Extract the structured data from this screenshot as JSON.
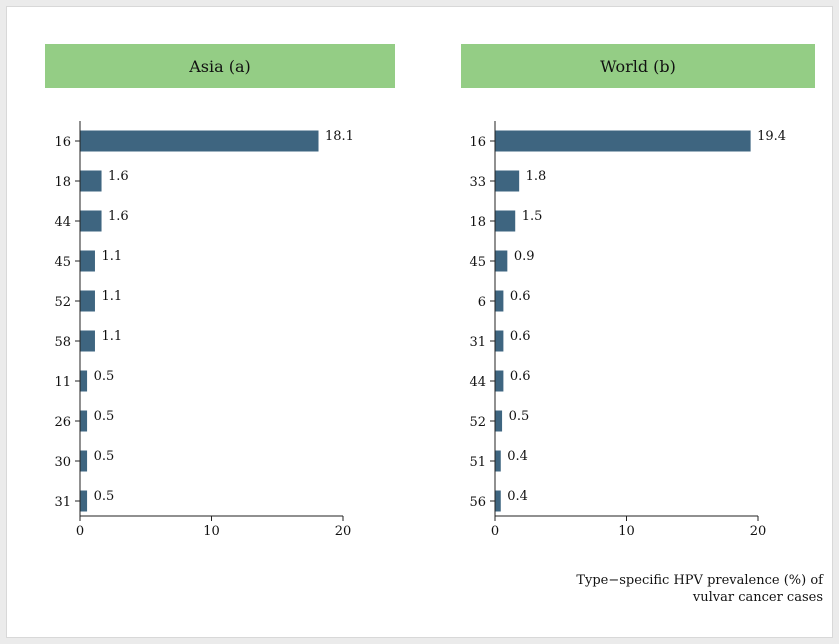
{
  "colors": {
    "bar": "#3e6580",
    "header": "#94cd85"
  },
  "caption_lines": [
    "Type−specific HPV prevalence (%) of",
    "vulvar cancer cases"
  ],
  "chart_data": [
    {
      "type": "bar",
      "orientation": "horizontal",
      "title": "Asia (a)",
      "categories": [
        "16",
        "18",
        "44",
        "45",
        "52",
        "58",
        "11",
        "26",
        "30",
        "31"
      ],
      "values": [
        18.1,
        1.6,
        1.6,
        1.1,
        1.1,
        1.1,
        0.5,
        0.5,
        0.5,
        0.5
      ],
      "data_labels": [
        "18.1",
        "1.6",
        "1.6",
        "1.1",
        "1.1",
        "1.1",
        "0.5",
        "0.5",
        "0.5",
        "0.5"
      ],
      "xlim": [
        0,
        20
      ],
      "xticks": [
        0,
        10,
        20
      ],
      "grid": false
    },
    {
      "type": "bar",
      "orientation": "horizontal",
      "title": "World (b)",
      "categories": [
        "16",
        "33",
        "18",
        "45",
        "6",
        "31",
        "44",
        "52",
        "51",
        "56"
      ],
      "values": [
        19.4,
        1.8,
        1.5,
        0.9,
        0.6,
        0.6,
        0.6,
        0.5,
        0.4,
        0.4
      ],
      "data_labels": [
        "19.4",
        "1.8",
        "1.5",
        "0.9",
        "0.6",
        "0.6",
        "0.6",
        "0.5",
        "0.4",
        "0.4"
      ],
      "xlim": [
        0,
        20
      ],
      "xticks": [
        0,
        10,
        20
      ],
      "grid": false
    }
  ]
}
